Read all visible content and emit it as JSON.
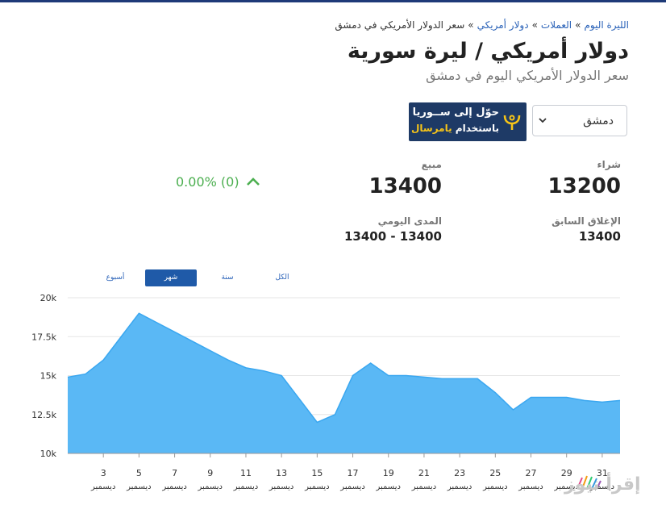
{
  "breadcrumb": {
    "items": [
      "الليرة اليوم",
      "العملات",
      "دولار أمريكي"
    ],
    "current": "سعر الدولار الأمريكي في دمشق",
    "separator": "»"
  },
  "header": {
    "title": "دولار أمريكي / ليرة سورية",
    "subtitle": "سعر الدولار الأمريكي اليوم في دمشق"
  },
  "city_select": {
    "value": "دمشق"
  },
  "ad": {
    "line1": "حوّل إلى ســوريا",
    "line2_prefix": "باستخدام",
    "line2_highlight": "يامرسال"
  },
  "prices": {
    "buy_label": "شراء",
    "buy_value": "13200",
    "sell_label": "مبيع",
    "sell_value": "13400",
    "prev_close_label": "الإغلاق السابق",
    "prev_close_value": "13400",
    "daily_range_label": "المدى اليومي",
    "daily_range_value": "13400 - 13400",
    "change_text": "0.00% (0)",
    "change_color": "#4caf50"
  },
  "range_tabs": [
    {
      "label": "أسبوع",
      "active": false
    },
    {
      "label": "شهر",
      "active": true
    },
    {
      "label": "سنة",
      "active": false
    },
    {
      "label": "الكل",
      "active": false
    }
  ],
  "watermark": {
    "text": "إقرأ نيوز"
  },
  "colors": {
    "accent": "#1f5aa8",
    "area_fill": "#5ab8f5",
    "area_line": "#3aa7f0",
    "grid": "#e6e6e6"
  },
  "chart_data": {
    "type": "area",
    "month_label": "ديسمبر",
    "x": [
      1,
      2,
      3,
      4,
      5,
      6,
      7,
      8,
      9,
      10,
      11,
      12,
      13,
      14,
      15,
      16,
      17,
      18,
      19,
      20,
      21,
      22,
      23,
      24,
      25,
      26,
      27,
      28,
      29,
      30,
      31,
      32
    ],
    "series": [
      {
        "values": [
          14900,
          15100,
          16000,
          17500,
          19000,
          18400,
          17800,
          17200,
          16600,
          16000,
          15500,
          15300,
          15000,
          13500,
          12000,
          12500,
          15000,
          15800,
          15000,
          15000,
          14900,
          14800,
          14800,
          14800,
          13900,
          12800,
          13600,
          13600,
          13600,
          13400,
          13300,
          13400
        ]
      }
    ],
    "x_ticks": [
      3,
      5,
      7,
      9,
      11,
      13,
      15,
      17,
      19,
      21,
      23,
      25,
      27,
      29,
      31
    ],
    "y_ticks": [
      10000,
      12500,
      15000,
      17500,
      20000
    ],
    "y_tick_labels": [
      "10k",
      "12.5k",
      "15k",
      "17.5k",
      "20k"
    ],
    "ylim": [
      10000,
      20000
    ],
    "grid": true
  }
}
